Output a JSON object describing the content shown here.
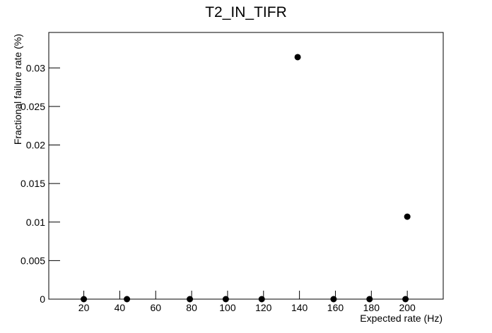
{
  "chart_data": {
    "type": "scatter",
    "title": "T2_IN_TIFR",
    "x_label": "Expected rate (Hz)",
    "y_label": "Fractional failure rate (%)",
    "x": [
      20,
      44,
      79,
      99,
      119,
      139,
      159,
      179,
      199,
      200
    ],
    "values": [
      0,
      0,
      0,
      0,
      0,
      0.0314,
      0,
      0,
      0,
      0.0107
    ],
    "color": "#000000",
    "xlim": [
      0.5,
      220
    ],
    "ylim": [
      0,
      0.0346
    ],
    "xticks": [
      20,
      40,
      60,
      80,
      100,
      120,
      140,
      160,
      180,
      200
    ],
    "yticks": [
      0,
      0.005,
      0.01,
      0.015,
      0.02,
      0.025,
      0.03
    ]
  }
}
